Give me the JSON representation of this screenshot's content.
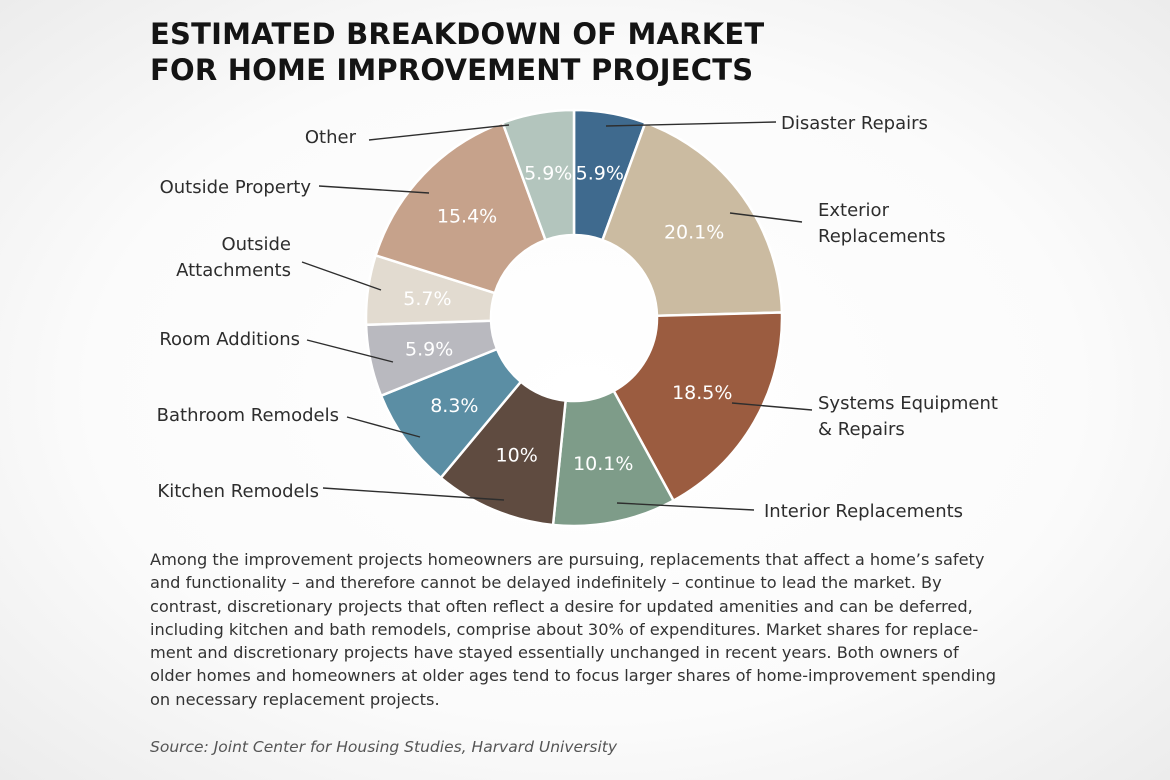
{
  "title_lines": [
    "ESTIMATED BREAKDOWN OF MARKET",
    "FOR HOME IMPROVEMENT PROJECTS"
  ],
  "chart_data": {
    "type": "pie",
    "style": "donut",
    "title": "Estimated Breakdown of Market for Home Improvement Projects",
    "unit": "%",
    "slices": [
      {
        "name": "Disaster Repairs",
        "label_lines": [
          "Disaster Repairs"
        ],
        "value": 5.9,
        "value_label": "5.9%",
        "color": "#3f6a8e"
      },
      {
        "name": "Exterior Replacements",
        "label_lines": [
          "Exterior",
          "Replacements"
        ],
        "value": 20.1,
        "value_label": "20.1%",
        "color": "#cbbba1"
      },
      {
        "name": "Systems Equipment & Repairs",
        "label_lines": [
          "Systems Equipment",
          "& Repairs"
        ],
        "value": 18.5,
        "value_label": "18.5%",
        "color": "#9b5c40"
      },
      {
        "name": "Interior Replacements",
        "label_lines": [
          "Interior Replacements"
        ],
        "value": 10.1,
        "value_label": "10.1%",
        "color": "#7e9c89"
      },
      {
        "name": "Kitchen Remodels",
        "label_lines": [
          "Kitchen Remodels"
        ],
        "value": 10,
        "value_label": "10%",
        "color": "#5f4b40"
      },
      {
        "name": "Bathroom Remodels",
        "label_lines": [
          "Bathroom Remodels"
        ],
        "value": 8.3,
        "value_label": "8.3%",
        "color": "#5b8ea4"
      },
      {
        "name": "Room Additions",
        "label_lines": [
          "Room Additions"
        ],
        "value": 5.9,
        "value_label": "5.9%",
        "color": "#b9b9bf"
      },
      {
        "name": "Outside Attachments",
        "label_lines": [
          "Outside",
          "Attachments"
        ],
        "value": 5.7,
        "value_label": "5.7%",
        "color": "#e2dbd0"
      },
      {
        "name": "Outside Property",
        "label_lines": [
          "Outside Property"
        ],
        "value": 15.4,
        "value_label": "15.4%",
        "color": "#c6a28b"
      },
      {
        "name": "Other",
        "label_lines": [
          "Other"
        ],
        "value": 5.9,
        "value_label": "5.9%",
        "color": "#b3c5bd"
      }
    ]
  },
  "caption_lines": [
    "Among the improvement projects homeowners are pursuing, replacements that affect a home’s safety",
    "and functionality – and therefore cannot be delayed indefinitely – continue to lead the market. By",
    "contrast, discretionary projects that often reflect a desire for updated amenities and can be deferred,",
    "including kitchen and bath remodels, comprise about 30% of expenditures. Market shares for replace-",
    "ment and discretionary projects have stayed essentially unchanged in recent years. Both owners of",
    "older homes and homeowners at older ages tend to focus larger shares of home-improvement spending",
    "on necessary replacement projects."
  ],
  "source": "Source: Joint Center for Housing Studies, Harvard University"
}
